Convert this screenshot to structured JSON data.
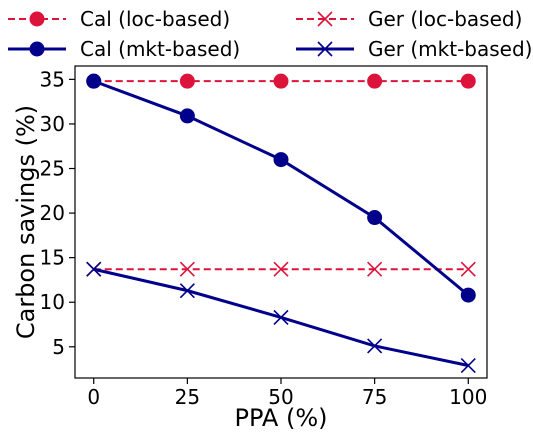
{
  "chart_data": {
    "type": "line",
    "title": "",
    "xlabel": "PPA (%)",
    "ylabel": "Carbon savings (%)",
    "x": [
      0,
      25,
      50,
      75,
      100
    ],
    "x_ticks": [
      0,
      25,
      50,
      75,
      100
    ],
    "y_ticks": [
      5,
      10,
      15,
      20,
      25,
      30,
      35
    ],
    "xlim": [
      -5,
      105
    ],
    "ylim": [
      1.5,
      36.5
    ],
    "grid": false,
    "legend_position": "top (above plot, 2 columns)",
    "series": [
      {
        "name": "Cal (loc-based)",
        "values": [
          34.8,
          34.8,
          34.8,
          34.8,
          34.8
        ],
        "color": "#dc143c",
        "linestyle": "dashed",
        "marker": "circle"
      },
      {
        "name": "Ger (loc-based)",
        "values": [
          13.7,
          13.7,
          13.7,
          13.7,
          13.7
        ],
        "color": "#dc143c",
        "linestyle": "dashed",
        "marker": "x"
      },
      {
        "name": "Cal (mkt-based)",
        "values": [
          34.8,
          30.9,
          26.0,
          19.5,
          10.8
        ],
        "color": "#00008b",
        "linestyle": "solid",
        "marker": "circle"
      },
      {
        "name": "Ger (mkt-based)",
        "values": [
          13.7,
          11.3,
          8.3,
          5.1,
          2.9
        ],
        "color": "#00008b",
        "linestyle": "solid",
        "marker": "x"
      }
    ]
  }
}
